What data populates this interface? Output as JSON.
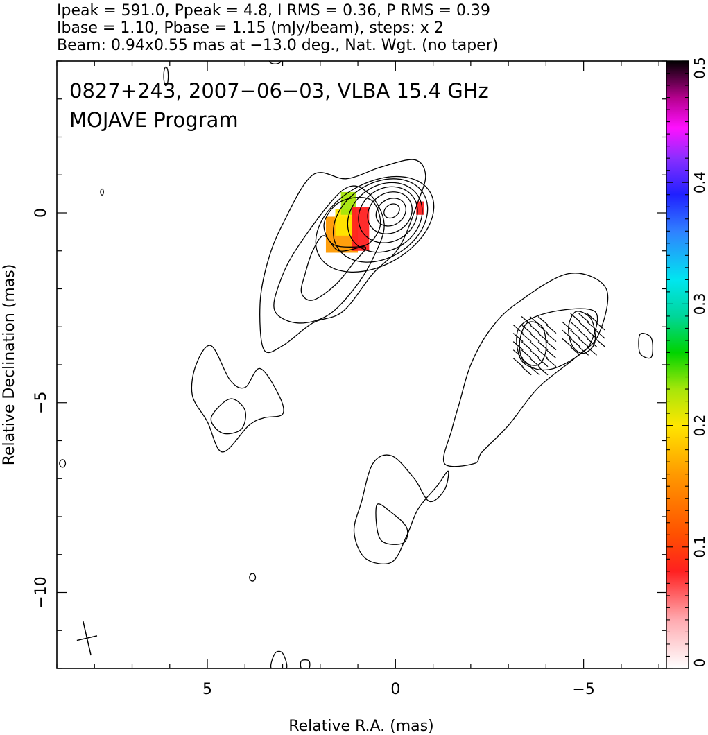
{
  "header": {
    "line1": "Ipeak = 591.0, Ppeak = 4.8, I RMS = 0.36, P RMS = 0.39",
    "line2": "Ibase = 1.10, Pbase = 1.15 (mJy/beam), steps: x 2",
    "line3": "Beam: 0.94x0.55 mas at −13.0 deg., Nat. Wgt. (no taper)"
  },
  "chart_data": {
    "type": "heatmap",
    "title": "0827+243, 2007−06−03, VLBA 15.4 GHz",
    "subtitle": "MOJAVE Program",
    "xlabel": "Relative R.A. (mas)",
    "ylabel": "Relative Declination (mas)",
    "xlim": [
      9,
      -7.2
    ],
    "ylim": [
      -12,
      4
    ],
    "x_ticks": [
      5,
      0,
      -5
    ],
    "x_tick_labels": [
      "5",
      "0",
      "−5"
    ],
    "y_ticks": [
      0,
      -5,
      -10
    ],
    "y_tick_labels": [
      "0",
      "−5",
      "−10"
    ],
    "colorbar": {
      "range": [
        0,
        0.5
      ],
      "ticks": [
        0,
        0.1,
        0.2,
        0.3,
        0.4,
        0.5
      ],
      "tick_labels": [
        "0",
        "0.1",
        "0.2",
        "0.3",
        "0.4",
        "0.5"
      ]
    },
    "beam": {
      "major_mas": 0.94,
      "minor_mas": 0.55,
      "pa_deg": -13.0,
      "center": [
        8.2,
        -11.2
      ]
    },
    "core_contours": [
      {
        "cx": 0.1,
        "cy": 0.05,
        "rx": 0.22,
        "ry": 0.17,
        "angle_deg": 35
      },
      {
        "cx": 0.12,
        "cy": 0.02,
        "rx": 0.42,
        "ry": 0.34,
        "angle_deg": 35
      },
      {
        "cx": 0.15,
        "cy": 0.0,
        "rx": 0.62,
        "ry": 0.52,
        "angle_deg": 35
      },
      {
        "cx": 0.2,
        "cy": -0.05,
        "rx": 0.82,
        "ry": 0.7,
        "angle_deg": 35
      },
      {
        "cx": 0.28,
        "cy": -0.12,
        "rx": 1.05,
        "ry": 0.85,
        "angle_deg": 35
      },
      {
        "cx": 0.4,
        "cy": -0.2,
        "rx": 1.35,
        "ry": 0.98,
        "angle_deg": 33
      },
      {
        "cx": 0.55,
        "cy": -0.3,
        "rx": 1.7,
        "ry": 1.08,
        "angle_deg": 30
      }
    ],
    "contours": [
      {
        "name": "inner-knot",
        "points": [
          [
            1.9,
            -0.3
          ],
          [
            1.6,
            0.2
          ],
          [
            1.1,
            0.4
          ],
          [
            0.6,
            0.3
          ],
          [
            0.4,
            -0.3
          ],
          [
            0.7,
            -0.8
          ],
          [
            1.2,
            -0.9
          ],
          [
            1.7,
            -0.8
          ]
        ]
      },
      {
        "name": "jet-level-3",
        "points": [
          [
            2.2,
            -1.0
          ],
          [
            2.4,
            -1.6
          ],
          [
            2.5,
            -2.1
          ],
          [
            2.2,
            -2.3
          ],
          [
            1.6,
            -1.9
          ],
          [
            1.1,
            -1.3
          ],
          [
            0.8,
            -0.9
          ],
          [
            1.5,
            -1.0
          ],
          [
            1.9,
            -0.6
          ]
        ]
      },
      {
        "name": "jet-level-2",
        "points": [
          [
            1.4,
            0.6
          ],
          [
            2.6,
            -0.9
          ],
          [
            3.1,
            -1.9
          ],
          [
            3.2,
            -2.6
          ],
          [
            2.6,
            -2.9
          ],
          [
            1.8,
            -2.7
          ],
          [
            1.1,
            -2.0
          ],
          [
            0.6,
            -1.2
          ],
          [
            0.3,
            -0.3
          ],
          [
            0.7,
            0.5
          ]
        ]
      },
      {
        "name": "jet-level-1",
        "points": [
          [
            2.2,
            1.0
          ],
          [
            3.0,
            -0.3
          ],
          [
            3.4,
            -1.3
          ],
          [
            3.6,
            -2.4
          ],
          [
            3.5,
            -3.6
          ],
          [
            3.0,
            -3.5
          ],
          [
            2.2,
            -2.9
          ],
          [
            1.4,
            -2.6
          ],
          [
            0.6,
            -1.6
          ],
          [
            -0.1,
            -0.9
          ],
          [
            -0.6,
            0.3
          ],
          [
            -0.8,
            1.0
          ],
          [
            -0.5,
            1.4
          ],
          [
            0.4,
            1.2
          ],
          [
            1.3,
            0.9
          ]
        ]
      },
      {
        "name": "southeast-outer",
        "points": [
          [
            4.9,
            -3.5
          ],
          [
            4.4,
            -4.4
          ],
          [
            4.0,
            -4.6
          ],
          [
            3.6,
            -4.1
          ],
          [
            3.1,
            -4.8
          ],
          [
            3.0,
            -5.3
          ],
          [
            3.5,
            -5.4
          ],
          [
            3.9,
            -5.6
          ],
          [
            4.6,
            -6.3
          ],
          [
            5.0,
            -5.5
          ],
          [
            5.4,
            -4.8
          ],
          [
            5.3,
            -4.0
          ]
        ]
      },
      {
        "name": "southeast-inner",
        "points": [
          [
            4.4,
            -4.9
          ],
          [
            4.0,
            -5.2
          ],
          [
            4.1,
            -5.7
          ],
          [
            4.6,
            -5.8
          ],
          [
            4.9,
            -5.4
          ]
        ]
      },
      {
        "name": "southwest-jet-outer",
        "points": [
          [
            -3.2,
            -2.4
          ],
          [
            -4.6,
            -1.6
          ],
          [
            -5.6,
            -2.0
          ],
          [
            -5.4,
            -3.2
          ],
          [
            -4.8,
            -3.8
          ],
          [
            -3.8,
            -4.6
          ],
          [
            -3.0,
            -5.6
          ],
          [
            -2.3,
            -6.3
          ],
          [
            -2.1,
            -6.6
          ],
          [
            -1.3,
            -6.6
          ],
          [
            -1.5,
            -5.7
          ],
          [
            -1.7,
            -5.0
          ],
          [
            -2.0,
            -4.0
          ],
          [
            -2.5,
            -3.1
          ]
        ]
      },
      {
        "name": "southwest-jet-inner",
        "points": [
          [
            -3.3,
            -3.0
          ],
          [
            -4.2,
            -2.6
          ],
          [
            -5.3,
            -2.6
          ],
          [
            -5.2,
            -3.4
          ],
          [
            -4.8,
            -3.8
          ],
          [
            -4.2,
            -4.1
          ],
          [
            -3.7,
            -4.1
          ],
          [
            -3.3,
            -3.8
          ]
        ]
      },
      {
        "name": "sw-knot-a",
        "points": [
          [
            -3.5,
            -2.9
          ],
          [
            -3.9,
            -3.0
          ],
          [
            -4.0,
            -3.6
          ],
          [
            -3.8,
            -4.0
          ],
          [
            -3.4,
            -3.9
          ],
          [
            -3.3,
            -3.4
          ]
        ]
      },
      {
        "name": "sw-knot-b",
        "points": [
          [
            -4.8,
            -2.6
          ],
          [
            -5.2,
            -2.8
          ],
          [
            -5.3,
            -3.4
          ],
          [
            -5.0,
            -3.7
          ],
          [
            -4.7,
            -3.5
          ],
          [
            -4.6,
            -3.0
          ]
        ]
      },
      {
        "name": "south-lower-outer",
        "points": [
          [
            0.6,
            -6.6
          ],
          [
            0.9,
            -7.6
          ],
          [
            1.1,
            -8.4
          ],
          [
            0.8,
            -9.1
          ],
          [
            0.1,
            -9.2
          ],
          [
            -0.3,
            -8.5
          ],
          [
            -0.6,
            -7.8
          ],
          [
            -1.1,
            -7.2
          ],
          [
            -1.4,
            -6.8
          ],
          [
            -1.3,
            -7.3
          ],
          [
            -0.9,
            -7.6
          ],
          [
            -0.5,
            -7.0
          ],
          [
            0.1,
            -6.4
          ]
        ]
      },
      {
        "name": "south-lower-inner",
        "points": [
          [
            0.5,
            -7.7
          ],
          [
            0.1,
            -7.9
          ],
          [
            -0.3,
            -8.3
          ],
          [
            -0.2,
            -8.7
          ],
          [
            0.4,
            -8.6
          ]
        ]
      },
      {
        "name": "speck-west",
        "points": [
          [
            -6.5,
            -3.2
          ],
          [
            -6.8,
            -3.3
          ],
          [
            -6.8,
            -3.8
          ],
          [
            -6.5,
            -3.7
          ]
        ]
      },
      {
        "name": "speck-south-1",
        "points": [
          [
            3.3,
            -12.0
          ],
          [
            3.2,
            -11.6
          ],
          [
            3.0,
            -11.6
          ],
          [
            2.9,
            -12.0
          ]
        ]
      },
      {
        "name": "speck-south-2",
        "points": [
          [
            2.5,
            -12.0
          ],
          [
            2.5,
            -11.8
          ],
          [
            2.3,
            -11.8
          ],
          [
            2.3,
            -12.0
          ]
        ]
      }
    ],
    "small_components": [
      {
        "cx": 7.8,
        "cy": 0.55,
        "rx": 0.04,
        "ry": 0.08
      },
      {
        "cx": 8.85,
        "cy": -6.6,
        "rx": 0.08,
        "ry": 0.1
      },
      {
        "cx": 3.8,
        "cy": -9.6,
        "rx": 0.08,
        "ry": 0.1
      },
      {
        "cx": 3.2,
        "cy": 4.0,
        "rx": 0.15,
        "ry": 0.08
      },
      {
        "cx": 6.1,
        "cy": 3.6,
        "rx": 0.06,
        "ry": 0.25
      }
    ],
    "fractional_polarization_regions": [
      {
        "name": "core-region",
        "x": [
          -0.65,
          0.65
        ],
        "y": [
          -0.7,
          0.3
        ],
        "value": 0.03
      },
      {
        "name": "core-edge",
        "x": [
          -0.75,
          -0.55
        ],
        "y": [
          -0.05,
          0.3
        ],
        "value": 0.1
      },
      {
        "name": "jet-orange",
        "x": [
          1.0,
          1.85
        ],
        "y": [
          -1.05,
          -0.1
        ],
        "value": 0.16
      },
      {
        "name": "jet-yellow",
        "x": [
          1.05,
          1.6
        ],
        "y": [
          -0.6,
          0.1
        ],
        "value": 0.2
      },
      {
        "name": "jet-green",
        "x": [
          1.05,
          1.45
        ],
        "y": [
          -0.05,
          0.55
        ],
        "value": 0.24
      },
      {
        "name": "jet-red",
        "x": [
          0.7,
          1.15
        ],
        "y": [
          -1.0,
          0.15
        ],
        "value": 0.1
      }
    ]
  }
}
